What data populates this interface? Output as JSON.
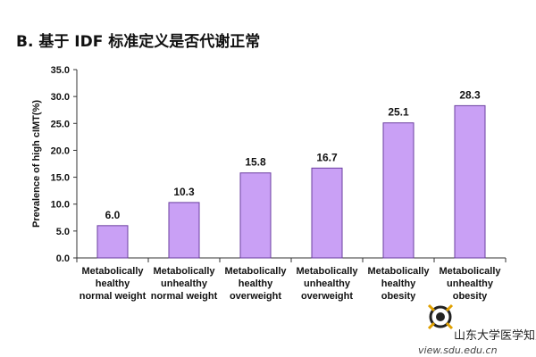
{
  "chart_data": {
    "type": "bar",
    "title": "B. 基于 IDF 标准定义是否代谢正常",
    "ylabel": "Prevalence of high cIMT(%)",
    "xlabel": "",
    "ylim": [
      0,
      35
    ],
    "yticks": [
      "0.0",
      "5.0",
      "10.0",
      "15.0",
      "20.0",
      "25.0",
      "30.0",
      "35.0"
    ],
    "categories": [
      [
        "Metabolically",
        "healthy",
        "normal weight"
      ],
      [
        "Metabolically",
        "unhealthy",
        "normal weight"
      ],
      [
        "Metabolically",
        "healthy",
        "overweight"
      ],
      [
        "Metabolically",
        "unhealthy",
        "overweight"
      ],
      [
        "Metabolically",
        "healthy",
        "obesity"
      ],
      [
        "Metabolically",
        "unhealthy",
        "obesity"
      ]
    ],
    "values": [
      6.0,
      10.3,
      15.8,
      16.7,
      25.1,
      28.3
    ],
    "data_labels": [
      "6.0",
      "10.3",
      "15.8",
      "16.7",
      "25.1",
      "28.3"
    ],
    "bar_color": "#c9a0f5",
    "bar_edge_color": "#6b3fa0",
    "grid": false
  },
  "watermark": {
    "name": "山东大学医学知点",
    "url": "view.sdu.edu.cn"
  }
}
